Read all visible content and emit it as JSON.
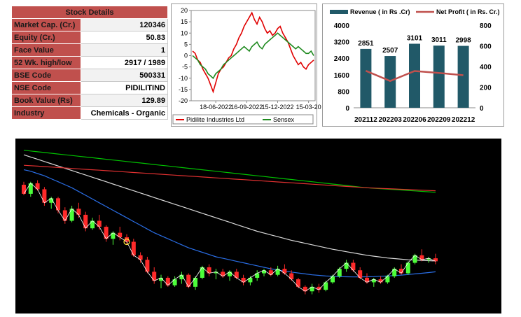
{
  "stock_details": {
    "title": "Stock Details",
    "rows": [
      {
        "label": "Market Cap. (Cr.)",
        "value": "120346"
      },
      {
        "label": "Equity (Cr.)",
        "value": "50.83"
      },
      {
        "label": "Face Value",
        "value": "1"
      },
      {
        "label": "52 Wk. high/low",
        "value": "2917 / 1989"
      },
      {
        "label": "BSE Code",
        "value": "500331"
      },
      {
        "label": "NSE Code",
        "value": "PIDILITIND"
      },
      {
        "label": "Book Value (Rs)",
        "value": "129.89"
      },
      {
        "label": "Industry",
        "value": "Chemicals - Organic"
      }
    ]
  },
  "chart_data": [
    {
      "type": "line",
      "x_ticks": [
        "18-06-2022",
        "16-09-2022",
        "15-12-2022",
        "15-03-20"
      ],
      "ylim": [
        -20,
        20
      ],
      "y_ticks": [
        "20",
        "15",
        "10",
        "5",
        "0",
        "-5",
        "-10",
        "-15",
        "-20"
      ],
      "series": [
        {
          "name": "Pidilite Industries Ltd",
          "color": "#e00000",
          "values": [
            2,
            1,
            -2,
            -3,
            -6,
            -8,
            -10,
            -13,
            -16,
            -12,
            -8,
            -6,
            -5,
            -3,
            -1,
            0,
            3,
            5,
            8,
            10,
            13,
            15,
            17,
            19,
            16,
            14,
            17,
            15,
            12,
            10,
            11,
            9,
            10,
            12,
            13,
            10,
            8,
            6,
            3,
            0,
            -2,
            -4,
            -3,
            -5,
            -6,
            -4,
            -3,
            -2
          ]
        },
        {
          "name": "Sensex",
          "color": "#1f8a1f",
          "values": [
            0,
            -1,
            -2,
            -4,
            -5,
            -6,
            -8,
            -9,
            -10,
            -8,
            -7,
            -6,
            -4,
            -3,
            -2,
            -1,
            0,
            1,
            2,
            3,
            4,
            3,
            2,
            4,
            5,
            6,
            4,
            3,
            5,
            6,
            7,
            8,
            9,
            10,
            9,
            8,
            7,
            6,
            5,
            4,
            3,
            4,
            3,
            2,
            1,
            1,
            2,
            0
          ]
        }
      ],
      "grid": false,
      "legend": "bottom"
    },
    {
      "type": "bar",
      "categories": [
        "202112",
        "202203",
        "202206",
        "202209",
        "202212"
      ],
      "series": [
        {
          "name": "Revenue ( in Rs .Cr)",
          "values": [
            2851,
            2507,
            3101,
            3011,
            2998
          ],
          "color": "#215968",
          "axis": "left"
        },
        {
          "name": "Net Profit ( in Rs. Cr.)",
          "values": [
            358,
            259,
            356,
            337,
            315
          ],
          "color": "#c0504d",
          "axis": "right",
          "type": "line"
        }
      ],
      "ylim": [
        0,
        4000
      ],
      "y_ticks": [
        "4000",
        "3200",
        "2400",
        "1600",
        "800",
        "0"
      ],
      "y2lim": [
        0,
        800
      ],
      "y2_ticks": [
        "800",
        "600",
        "400",
        "200",
        "0"
      ],
      "legend": "top"
    },
    {
      "type": "candlestick",
      "background": "#000000",
      "up_color": "#4cff3a",
      "down_color": "#ff2a2a",
      "candles": [
        [
          2780,
          2800,
          2710,
          2720
        ],
        [
          2720,
          2800,
          2700,
          2790
        ],
        [
          2790,
          2810,
          2740,
          2750
        ],
        [
          2750,
          2765,
          2640,
          2660
        ],
        [
          2660,
          2700,
          2620,
          2690
        ],
        [
          2690,
          2700,
          2590,
          2610
        ],
        [
          2610,
          2630,
          2520,
          2540
        ],
        [
          2540,
          2640,
          2530,
          2620
        ],
        [
          2620,
          2660,
          2560,
          2580
        ],
        [
          2580,
          2600,
          2470,
          2490
        ],
        [
          2490,
          2560,
          2480,
          2540
        ],
        [
          2540,
          2580,
          2480,
          2500
        ],
        [
          2500,
          2510,
          2400,
          2420
        ],
        [
          2420,
          2470,
          2380,
          2460
        ],
        [
          2460,
          2500,
          2410,
          2430
        ],
        [
          2430,
          2450,
          2380,
          2400
        ],
        [
          2400,
          2420,
          2300,
          2310
        ],
        [
          2310,
          2330,
          2260,
          2280
        ],
        [
          2280,
          2300,
          2190,
          2200
        ],
        [
          2200,
          2230,
          2120,
          2140
        ],
        [
          2140,
          2180,
          2090,
          2160
        ],
        [
          2160,
          2170,
          2100,
          2110
        ],
        [
          2110,
          2170,
          2100,
          2150
        ],
        [
          2150,
          2200,
          2120,
          2180
        ],
        [
          2180,
          2190,
          2090,
          2100
        ],
        [
          2100,
          2170,
          2080,
          2160
        ],
        [
          2160,
          2240,
          2150,
          2230
        ],
        [
          2230,
          2250,
          2170,
          2190
        ],
        [
          2190,
          2220,
          2150,
          2200
        ],
        [
          2200,
          2220,
          2160,
          2170
        ],
        [
          2170,
          2210,
          2140,
          2200
        ],
        [
          2200,
          2220,
          2150,
          2160
        ],
        [
          2160,
          2180,
          2110,
          2130
        ],
        [
          2130,
          2170,
          2110,
          2160
        ],
        [
          2160,
          2210,
          2140,
          2190
        ],
        [
          2190,
          2220,
          2170,
          2210
        ],
        [
          2210,
          2230,
          2170,
          2180
        ],
        [
          2180,
          2240,
          2170,
          2220
        ],
        [
          2220,
          2250,
          2180,
          2190
        ],
        [
          2190,
          2210,
          2140,
          2150
        ],
        [
          2150,
          2160,
          2090,
          2100
        ],
        [
          2100,
          2110,
          2050,
          2070
        ],
        [
          2070,
          2120,
          2050,
          2100
        ],
        [
          2100,
          2120,
          2060,
          2080
        ],
        [
          2080,
          2140,
          2070,
          2130
        ],
        [
          2130,
          2180,
          2120,
          2170
        ],
        [
          2170,
          2230,
          2160,
          2220
        ],
        [
          2220,
          2280,
          2200,
          2260
        ],
        [
          2260,
          2280,
          2200,
          2210
        ],
        [
          2210,
          2230,
          2150,
          2160
        ],
        [
          2160,
          2190,
          2120,
          2130
        ],
        [
          2130,
          2160,
          2100,
          2150
        ],
        [
          2150,
          2170,
          2120,
          2130
        ],
        [
          2130,
          2180,
          2120,
          2170
        ],
        [
          2170,
          2230,
          2160,
          2220
        ],
        [
          2220,
          2250,
          2180,
          2190
        ],
        [
          2190,
          2270,
          2180,
          2260
        ],
        [
          2260,
          2320,
          2250,
          2310
        ],
        [
          2310,
          2350,
          2270,
          2280
        ],
        [
          2280,
          2300,
          2260,
          2290
        ],
        [
          2290,
          2320,
          2250,
          2270
        ]
      ],
      "moving_averages": [
        {
          "name": "ma-white",
          "color": "#d8d8d8",
          "values": [
            2980,
            2965,
            2950,
            2935,
            2920,
            2905,
            2890,
            2875,
            2860,
            2845,
            2830,
            2815,
            2800,
            2785,
            2770,
            2755,
            2740,
            2725,
            2710,
            2695,
            2680,
            2665,
            2650,
            2635,
            2620,
            2605,
            2590,
            2575,
            2560,
            2545,
            2530,
            2515,
            2500,
            2485,
            2470,
            2458,
            2446,
            2434,
            2422,
            2410,
            2400,
            2390,
            2380,
            2370,
            2360,
            2350,
            2342,
            2334,
            2326,
            2318,
            2310,
            2304,
            2298,
            2292,
            2288,
            2284,
            2280,
            2278,
            2276,
            2274,
            2272
          ]
        },
        {
          "name": "ma-green",
          "color": "#00c000",
          "values": [
            3010,
            3005,
            3000,
            2995,
            2990,
            2985,
            2980,
            2975,
            2970,
            2965,
            2960,
            2955,
            2950,
            2945,
            2940,
            2935,
            2930,
            2925,
            2920,
            2915,
            2910,
            2905,
            2900,
            2895,
            2890,
            2885,
            2880,
            2875,
            2870,
            2865,
            2860,
            2855,
            2850,
            2845,
            2840,
            2835,
            2830,
            2825,
            2820,
            2815,
            2810,
            2805,
            2800,
            2795,
            2790,
            2785,
            2780,
            2775,
            2770,
            2765,
            2760,
            2757,
            2754,
            2751,
            2748,
            2745,
            2742,
            2739,
            2736,
            2733,
            2730
          ]
        },
        {
          "name": "ma-red",
          "color": "#e03030",
          "values": [
            2910,
            2907,
            2904,
            2901,
            2898,
            2895,
            2892,
            2889,
            2886,
            2883,
            2880,
            2877,
            2874,
            2871,
            2868,
            2865,
            2862,
            2859,
            2856,
            2853,
            2850,
            2847,
            2844,
            2841,
            2838,
            2835,
            2832,
            2829,
            2826,
            2823,
            2820,
            2817,
            2814,
            2811,
            2808,
            2805,
            2802,
            2799,
            2796,
            2793,
            2790,
            2787,
            2784,
            2781,
            2778,
            2775,
            2772,
            2769,
            2766,
            2763,
            2760,
            2758,
            2756,
            2754,
            2752,
            2750,
            2748,
            2746,
            2744,
            2742,
            2740
          ]
        },
        {
          "name": "ma-blue",
          "color": "#2a6ee6",
          "values": [
            2880,
            2870,
            2855,
            2840,
            2820,
            2800,
            2780,
            2760,
            2735,
            2710,
            2685,
            2660,
            2635,
            2610,
            2585,
            2560,
            2535,
            2510,
            2485,
            2460,
            2440,
            2420,
            2400,
            2380,
            2360,
            2345,
            2330,
            2315,
            2300,
            2290,
            2280,
            2270,
            2260,
            2250,
            2240,
            2230,
            2220,
            2212,
            2205,
            2198,
            2192,
            2186,
            2180,
            2176,
            2172,
            2170,
            2168,
            2167,
            2166,
            2166,
            2167,
            2168,
            2170,
            2172,
            2175,
            2178,
            2182,
            2186,
            2190,
            2195,
            2200
          ]
        }
      ]
    }
  ]
}
